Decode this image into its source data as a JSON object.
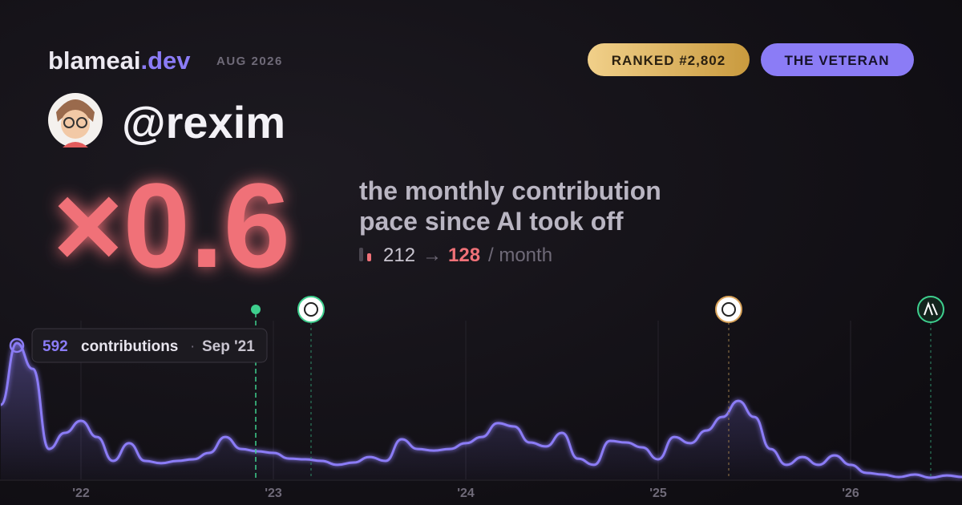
{
  "header": {
    "brand": "blameai",
    "brand_tld": ".dev",
    "date": "AUG 2026",
    "rank_badge": "RANKED #2,802",
    "title_badge": "THE VETERAN"
  },
  "profile": {
    "handle": "@rexim"
  },
  "stat": {
    "multiplier": "×0.6",
    "description_line1": "the monthly contribution",
    "description_line2": "pace since AI took off",
    "before": 212,
    "arrow": "→",
    "after": 128,
    "unit": "/ month"
  },
  "chart_data": {
    "type": "area",
    "categories": [
      null,
      null,
      null,
      null,
      null,
      "'22",
      null,
      null,
      null,
      null,
      null,
      null,
      null,
      null,
      null,
      null,
      null,
      "'23",
      null,
      null,
      null,
      null,
      null,
      null,
      null,
      null,
      null,
      null,
      null,
      "'24",
      null,
      null,
      null,
      null,
      null,
      null,
      null,
      null,
      null,
      null,
      null,
      "'25",
      null,
      null,
      null,
      null,
      null,
      null,
      null,
      null,
      null,
      null,
      null,
      "'26",
      null,
      null,
      null,
      null,
      null,
      null,
      null
    ],
    "series": [
      {
        "name": "contributions",
        "color": "#8b7cf6",
        "values": [
          324,
          592,
          480,
          132,
          202,
          254,
          184,
          80,
          157,
          80,
          70,
          80,
          87,
          115,
          184,
          132,
          122,
          115,
          90,
          87,
          80,
          63,
          73,
          97,
          80,
          174,
          132,
          125,
          132,
          157,
          184,
          244,
          230,
          160,
          143,
          202,
          90,
          63,
          167,
          160,
          139,
          87,
          184,
          157,
          212,
          271,
          341,
          271,
          132,
          63,
          97,
          63,
          104,
          63,
          28,
          21,
          10,
          21,
          7,
          17,
          10
        ]
      }
    ],
    "tooltip": {
      "value": 592,
      "label": "contributions",
      "separator": "·",
      "date": "Sep '21"
    }
  }
}
